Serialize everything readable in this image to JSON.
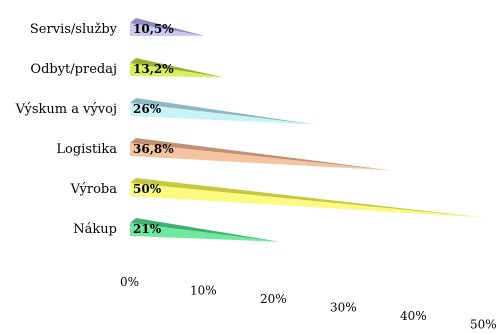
{
  "chart_data": {
    "type": "bar",
    "orientation": "horizontal",
    "style": "3d-wedge",
    "categories": [
      "Servis/služby",
      "Odbyt/predaj",
      "Výskum a vývoj",
      "Logistika",
      "Výroba",
      "Nákup"
    ],
    "values": [
      10.5,
      13.2,
      26,
      36.8,
      50,
      21
    ],
    "value_labels": [
      "10,5%",
      "13,2%",
      "26%",
      "36,8%",
      "50%",
      "21%"
    ],
    "colors": [
      "#c9c8f0",
      "#d8f060",
      "#c8f4f8",
      "#f4c4a0",
      "#fafa80",
      "#70e8a0"
    ],
    "dark_colors": [
      "#8c8ac0",
      "#9ab030",
      "#8cb8c0",
      "#c09070",
      "#c8c840",
      "#40b070"
    ],
    "xlim": [
      0,
      50
    ],
    "xticks": [
      "0%",
      "10%",
      "20%",
      "30%",
      "40%",
      "50%"
    ],
    "xlabel": "",
    "ylabel": "",
    "title": "",
    "grid": false,
    "legend": "none"
  }
}
